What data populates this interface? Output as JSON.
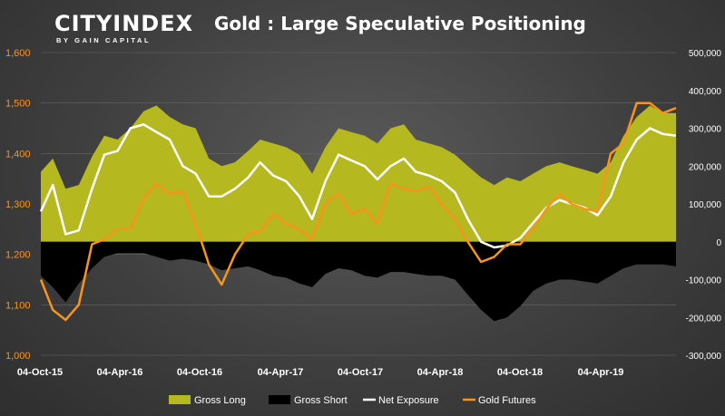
{
  "logo": {
    "main": "CITYINDEX",
    "sub": "BY GAIN CAPITAL"
  },
  "chart_data": {
    "type": "area",
    "title": "Gold : Large Speculative Positioning",
    "x_tick_labels": [
      "04-Oct-15",
      "04-Apr-16",
      "04-Oct-16",
      "04-Apr-17",
      "04-Oct-17",
      "04-Apr-18",
      "04-Oct-18",
      "04-Apr-19"
    ],
    "x_range": [
      "2015-10-04",
      "2019-11-01"
    ],
    "y_left": {
      "ticks": [
        1000,
        1100,
        1200,
        1300,
        1400,
        1500,
        1600
      ],
      "tick_labels": [
        "1,000",
        "1,100",
        "1,200",
        "1,300",
        "1,400",
        "1,500",
        "1,600"
      ],
      "range": [
        1000,
        1600
      ]
    },
    "y_right": {
      "ticks": [
        -300000,
        -200000,
        -100000,
        0,
        100000,
        200000,
        300000,
        400000,
        500000
      ],
      "tick_labels": [
        "-300,000",
        "-200,000",
        "-100,000",
        "0",
        "100,000",
        "200,000",
        "300,000",
        "400,000",
        "500,000"
      ],
      "range": [
        -300000,
        500000
      ]
    },
    "legend_position": "bottom",
    "series": [
      {
        "name": "Gross Long",
        "axis": "right",
        "type": "area",
        "color": "#b5b81e",
        "x": [
          "2015-10-04",
          "2015-11-01",
          "2015-12-01",
          "2016-01-01",
          "2016-02-01",
          "2016-03-01",
          "2016-04-01",
          "2016-05-01",
          "2016-06-01",
          "2016-07-01",
          "2016-08-01",
          "2016-09-01",
          "2016-10-01",
          "2016-11-01",
          "2016-12-01",
          "2017-01-01",
          "2017-02-01",
          "2017-03-01",
          "2017-04-01",
          "2017-05-01",
          "2017-06-01",
          "2017-07-01",
          "2017-08-01",
          "2017-09-01",
          "2017-10-01",
          "2017-11-01",
          "2017-12-01",
          "2018-01-01",
          "2018-02-01",
          "2018-03-01",
          "2018-04-01",
          "2018-05-01",
          "2018-06-01",
          "2018-07-01",
          "2018-08-01",
          "2018-09-01",
          "2018-10-01",
          "2018-11-01",
          "2018-12-01",
          "2019-01-01",
          "2019-02-01",
          "2019-03-01",
          "2019-04-01",
          "2019-05-01",
          "2019-06-01",
          "2019-07-01",
          "2019-08-01",
          "2019-09-01",
          "2019-10-01",
          "2019-11-01"
        ],
        "values": [
          185000,
          220000,
          140000,
          150000,
          225000,
          280000,
          270000,
          300000,
          345000,
          360000,
          330000,
          310000,
          300000,
          220000,
          200000,
          210000,
          240000,
          270000,
          260000,
          250000,
          230000,
          180000,
          250000,
          300000,
          290000,
          280000,
          260000,
          300000,
          310000,
          270000,
          260000,
          250000,
          230000,
          200000,
          170000,
          150000,
          170000,
          160000,
          180000,
          200000,
          210000,
          200000,
          190000,
          180000,
          210000,
          280000,
          330000,
          360000,
          340000,
          340000
        ]
      },
      {
        "name": "Gross Short",
        "axis": "right",
        "type": "area",
        "color": "#000000",
        "x": [
          "2015-10-04",
          "2015-11-01",
          "2015-12-01",
          "2016-01-01",
          "2016-02-01",
          "2016-03-01",
          "2016-04-01",
          "2016-05-01",
          "2016-06-01",
          "2016-07-01",
          "2016-08-01",
          "2016-09-01",
          "2016-10-01",
          "2016-11-01",
          "2016-12-01",
          "2017-01-01",
          "2017-02-01",
          "2017-03-01",
          "2017-04-01",
          "2017-05-01",
          "2017-06-01",
          "2017-07-01",
          "2017-08-01",
          "2017-09-01",
          "2017-10-01",
          "2017-11-01",
          "2017-12-01",
          "2018-01-01",
          "2018-02-01",
          "2018-03-01",
          "2018-04-01",
          "2018-05-01",
          "2018-06-01",
          "2018-07-01",
          "2018-08-01",
          "2018-09-01",
          "2018-10-01",
          "2018-11-01",
          "2018-12-01",
          "2019-01-01",
          "2019-02-01",
          "2019-03-01",
          "2019-04-01",
          "2019-05-01",
          "2019-06-01",
          "2019-07-01",
          "2019-08-01",
          "2019-09-01",
          "2019-10-01",
          "2019-11-01"
        ],
        "values": [
          -90000,
          -120000,
          -160000,
          -110000,
          -70000,
          -40000,
          -30000,
          -30000,
          -30000,
          -40000,
          -50000,
          -45000,
          -50000,
          -60000,
          -75000,
          -70000,
          -65000,
          -75000,
          -90000,
          -95000,
          -110000,
          -120000,
          -85000,
          -70000,
          -75000,
          -90000,
          -95000,
          -80000,
          -80000,
          -85000,
          -90000,
          -90000,
          -100000,
          -140000,
          -180000,
          -210000,
          -200000,
          -170000,
          -130000,
          -110000,
          -100000,
          -100000,
          -105000,
          -110000,
          -90000,
          -70000,
          -60000,
          -60000,
          -60000,
          -65000
        ]
      },
      {
        "name": "Net Exposure",
        "axis": "right",
        "type": "line",
        "color": "#ffffff",
        "x": [
          "2015-10-04",
          "2015-11-01",
          "2015-12-01",
          "2016-01-01",
          "2016-02-01",
          "2016-03-01",
          "2016-04-01",
          "2016-05-01",
          "2016-06-01",
          "2016-07-01",
          "2016-08-01",
          "2016-09-01",
          "2016-10-01",
          "2016-11-01",
          "2016-12-01",
          "2017-01-01",
          "2017-02-01",
          "2017-03-01",
          "2017-04-01",
          "2017-05-01",
          "2017-06-01",
          "2017-07-01",
          "2017-08-01",
          "2017-09-01",
          "2017-10-01",
          "2017-11-01",
          "2017-12-01",
          "2018-01-01",
          "2018-02-01",
          "2018-03-01",
          "2018-04-01",
          "2018-05-01",
          "2018-06-01",
          "2018-07-01",
          "2018-08-01",
          "2018-09-01",
          "2018-10-01",
          "2018-11-01",
          "2018-12-01",
          "2019-01-01",
          "2019-02-01",
          "2019-03-01",
          "2019-04-01",
          "2019-05-01",
          "2019-06-01",
          "2019-07-01",
          "2019-08-01",
          "2019-09-01",
          "2019-10-01",
          "2019-11-01"
        ],
        "values": [
          80000,
          150000,
          20000,
          30000,
          140000,
          230000,
          240000,
          300000,
          310000,
          290000,
          270000,
          200000,
          180000,
          120000,
          120000,
          140000,
          170000,
          210000,
          175000,
          160000,
          120000,
          60000,
          160000,
          230000,
          215000,
          200000,
          165000,
          200000,
          220000,
          185000,
          175000,
          160000,
          130000,
          60000,
          0,
          -15000,
          -10000,
          10000,
          50000,
          90000,
          110000,
          100000,
          90000,
          70000,
          120000,
          210000,
          270000,
          300000,
          285000,
          280000
        ]
      },
      {
        "name": "Gold Futures",
        "axis": "left",
        "type": "line",
        "color": "#f7941d",
        "x": [
          "2015-10-04",
          "2015-11-01",
          "2015-12-01",
          "2016-01-01",
          "2016-02-01",
          "2016-03-01",
          "2016-04-01",
          "2016-05-01",
          "2016-06-01",
          "2016-07-01",
          "2016-08-01",
          "2016-09-01",
          "2016-10-01",
          "2016-11-01",
          "2016-12-01",
          "2017-01-01",
          "2017-02-01",
          "2017-03-01",
          "2017-04-01",
          "2017-05-01",
          "2017-06-01",
          "2017-07-01",
          "2017-08-01",
          "2017-09-01",
          "2017-10-01",
          "2017-11-01",
          "2017-12-01",
          "2018-01-01",
          "2018-02-01",
          "2018-03-01",
          "2018-04-01",
          "2018-05-01",
          "2018-06-01",
          "2018-07-01",
          "2018-08-01",
          "2018-09-01",
          "2018-10-01",
          "2018-11-01",
          "2018-12-01",
          "2019-01-01",
          "2019-02-01",
          "2019-03-01",
          "2019-04-01",
          "2019-05-01",
          "2019-06-01",
          "2019-07-01",
          "2019-08-01",
          "2019-09-01",
          "2019-10-01",
          "2019-11-01"
        ],
        "values": [
          1150,
          1090,
          1070,
          1100,
          1220,
          1230,
          1250,
          1250,
          1310,
          1340,
          1320,
          1325,
          1260,
          1180,
          1140,
          1200,
          1240,
          1245,
          1280,
          1260,
          1250,
          1230,
          1300,
          1320,
          1280,
          1290,
          1260,
          1340,
          1330,
          1325,
          1335,
          1300,
          1270,
          1225,
          1185,
          1195,
          1220,
          1220,
          1250,
          1290,
          1320,
          1300,
          1290,
          1285,
          1400,
          1420,
          1500,
          1500,
          1480,
          1490
        ]
      }
    ]
  }
}
